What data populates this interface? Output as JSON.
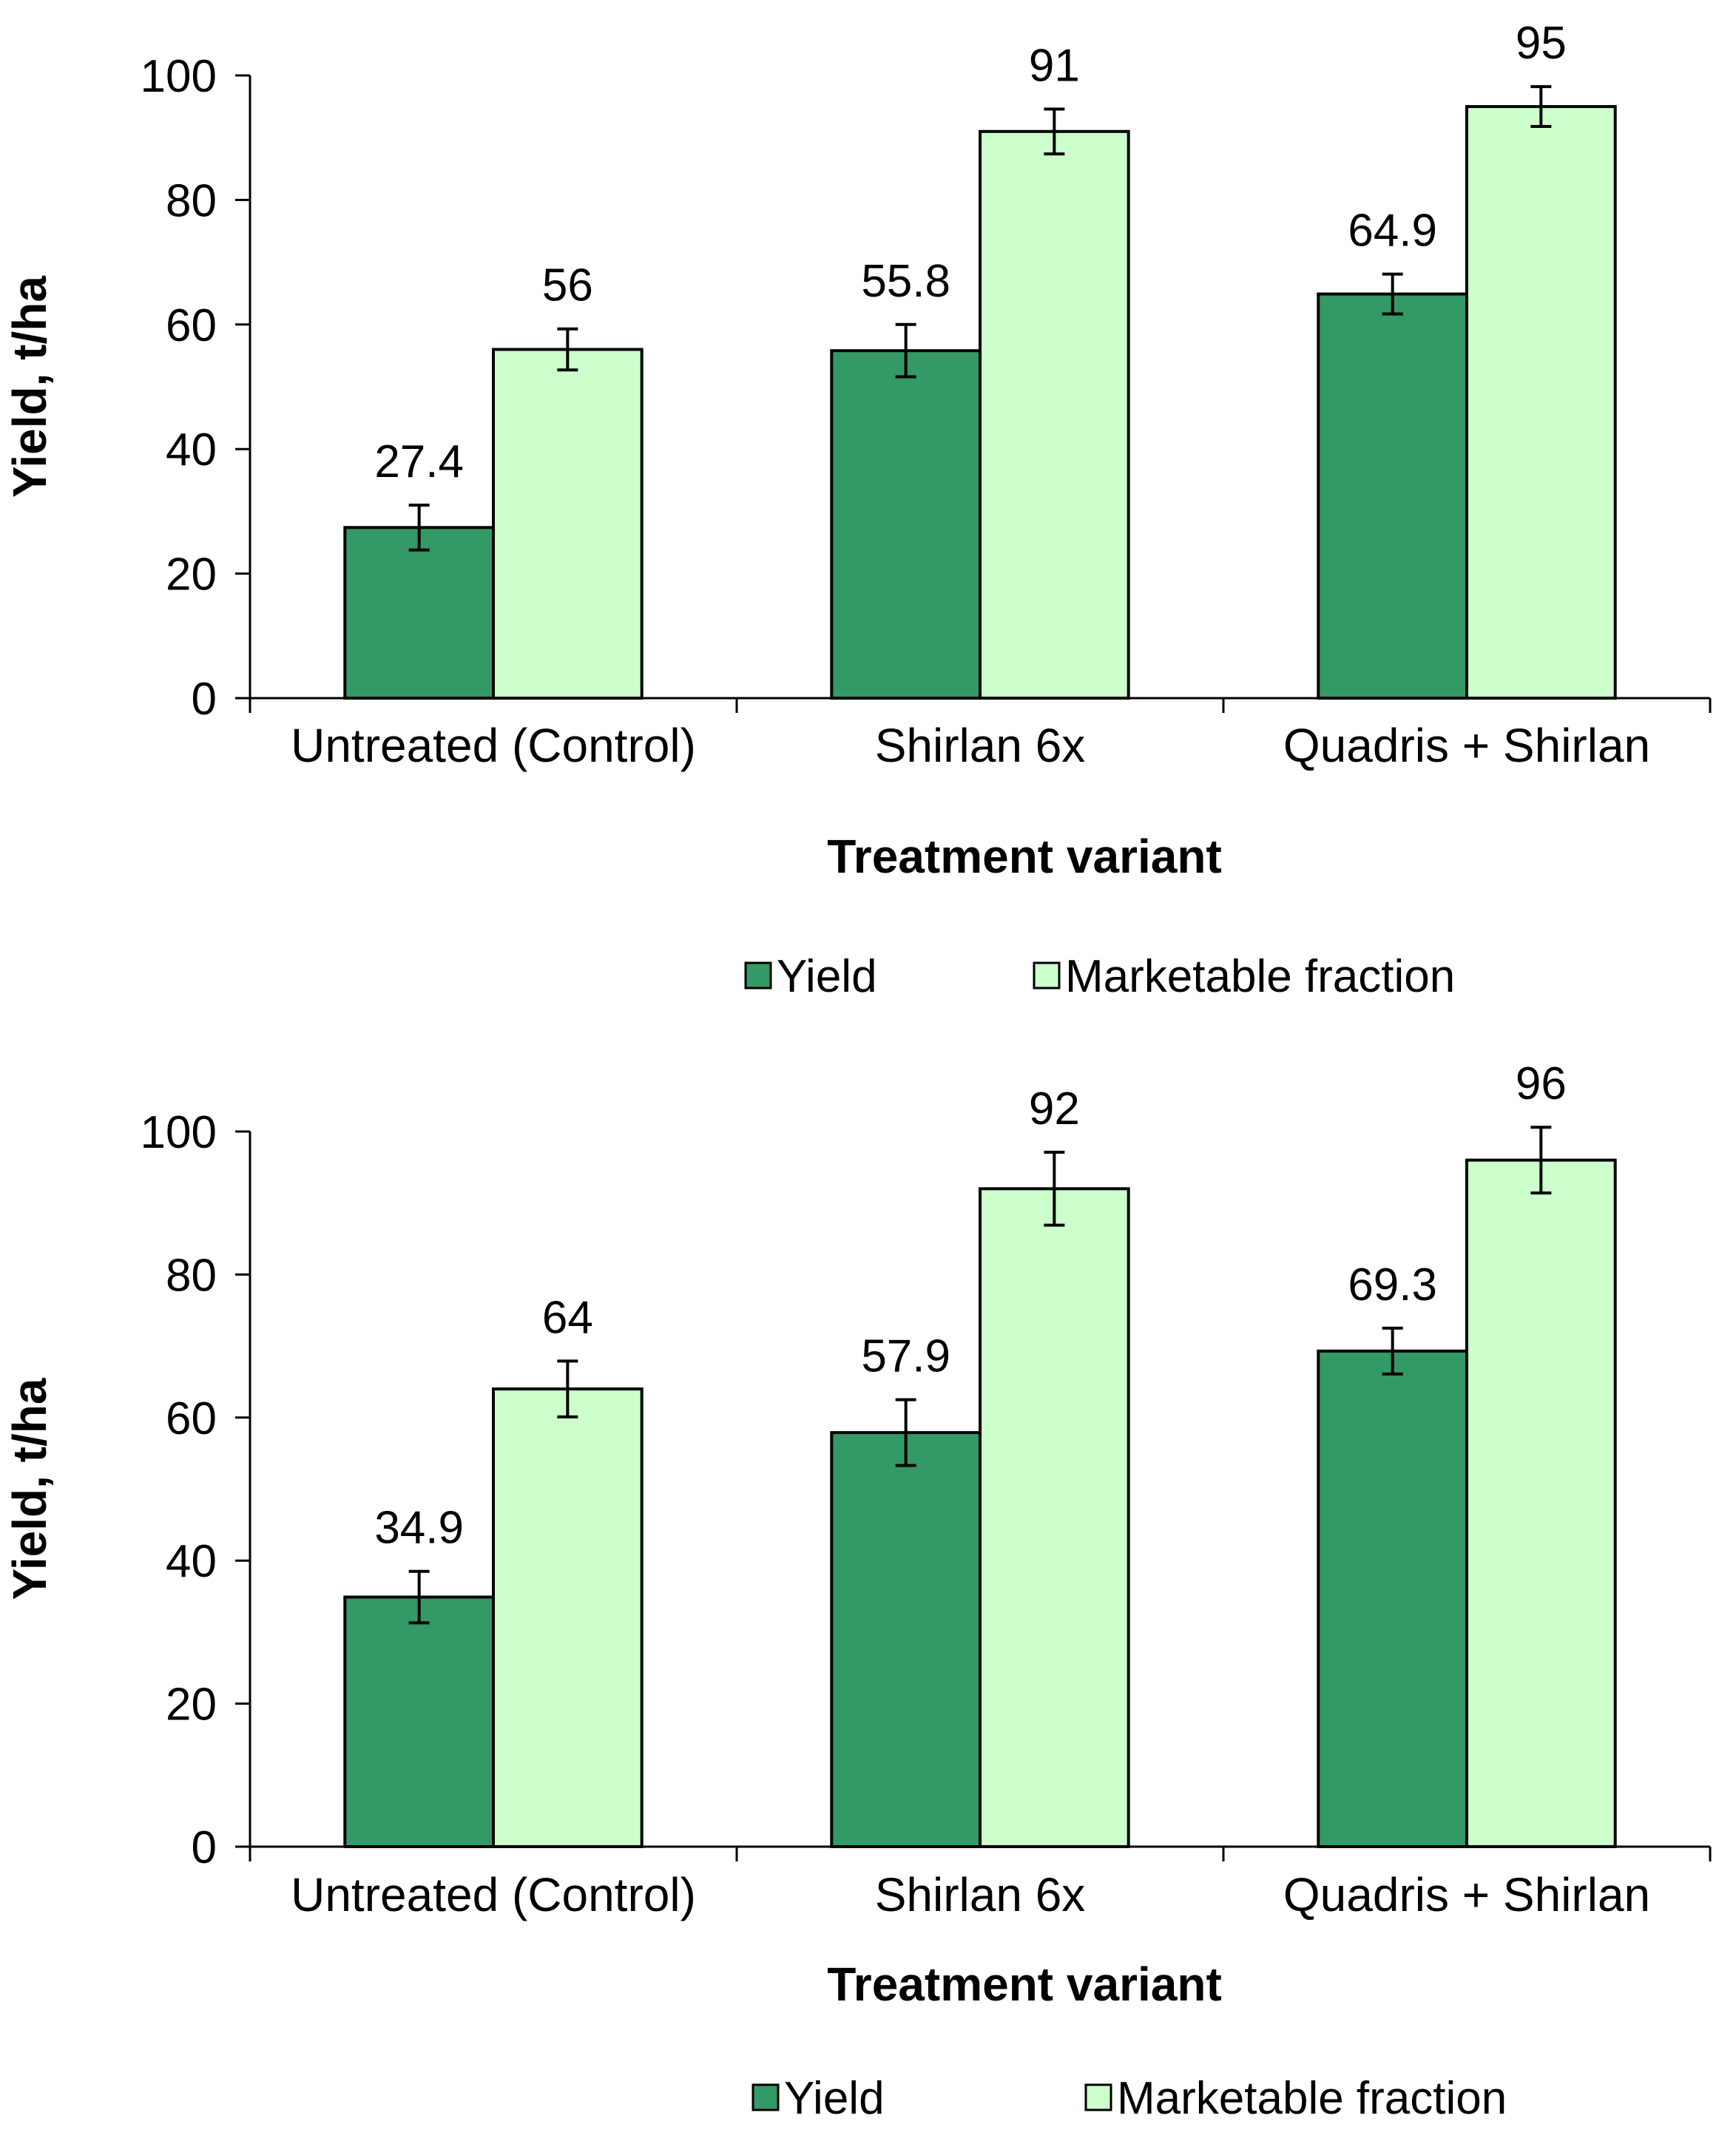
{
  "chart_data": [
    {
      "type": "bar",
      "categories": [
        "Untreated (Control)",
        "Shirlan 6x",
        "Quadris + Shirlan"
      ],
      "series": [
        {
          "name": "Yield",
          "values": [
            27.4,
            55.8,
            64.9
          ],
          "error": [
            3.6,
            4.2,
            3.2
          ],
          "color": "#339966"
        },
        {
          "name": "Marketable fraction",
          "values": [
            56,
            91,
            95
          ],
          "error": [
            3.3,
            3.6,
            3.2
          ],
          "color": "#ccffcc"
        }
      ],
      "data_labels": [
        [
          "27.4",
          "55.8",
          "64.9"
        ],
        [
          "56",
          "91",
          "95"
        ]
      ],
      "xlabel": "Treatment variant",
      "ylabel": "Yield, t/ha",
      "ylim": [
        0,
        100
      ],
      "yticks": [
        0,
        20,
        40,
        60,
        80,
        100
      ],
      "grid": false,
      "legend": "bottom-center"
    },
    {
      "type": "bar",
      "categories": [
        "Untreated (Control)",
        "Shirlan 6x",
        "Quadris + Shirlan"
      ],
      "series": [
        {
          "name": "Yield",
          "values": [
            34.9,
            57.9,
            69.3
          ],
          "error": [
            3.6,
            4.6,
            3.2
          ],
          "color": "#339966"
        },
        {
          "name": "Marketable fraction",
          "values": [
            64,
            92,
            96
          ],
          "error": [
            3.9,
            5.1,
            4.6
          ],
          "color": "#ccffcc"
        }
      ],
      "data_labels": [
        [
          "34.9",
          "57.9",
          "69.3"
        ],
        [
          "64",
          "92",
          "96"
        ]
      ],
      "xlabel": "Treatment variant",
      "ylabel": "Yield, t/ha",
      "ylim": [
        0,
        100
      ],
      "yticks": [
        0,
        20,
        40,
        60,
        80,
        100
      ],
      "grid": false,
      "legend": "bottom-center"
    }
  ]
}
